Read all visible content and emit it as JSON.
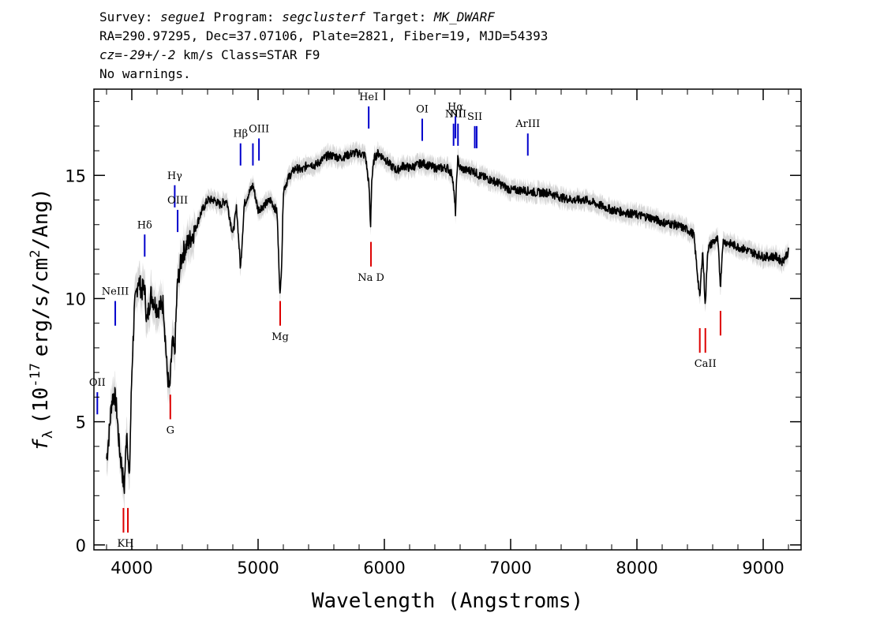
{
  "header": {
    "line1": {
      "survey_label": "Survey: ",
      "survey": "segue1",
      "program_label": " Program: ",
      "program": "segclusterf",
      "target_label": " Target: ",
      "target": "MK_DWARF"
    },
    "line2": "RA=290.97295, Dec=37.07106, Plate=2821, Fiber=19, MJD=54393",
    "line3": {
      "cz": "cz=-29+/-2",
      "rest": " km/s Class=STAR F9"
    },
    "line4": "No warnings."
  },
  "chart_data": {
    "type": "line",
    "xlabel": "Wavelength (Angstroms)",
    "ylabel": "f_λ (10^-17 erg/s/cm^2/Ang)",
    "ylabel_parts": {
      "symbol": "f",
      "sub": "λ",
      "pre": "(10",
      "exp1": "-17",
      "mid": "erg/s/cm",
      "exp2": "2",
      "post": "/Ang)"
    },
    "xlim": [
      3700,
      9300
    ],
    "ylim": [
      -0.2,
      18.5
    ],
    "x_ticks": [
      4000,
      5000,
      6000,
      7000,
      8000,
      9000
    ],
    "y_ticks": [
      0,
      5,
      10,
      15
    ],
    "colors": {
      "spectrum": "#000000",
      "error": "#bbbbbb",
      "emission": "#0000cc",
      "absorption": "#dd0000"
    },
    "spectrum": {
      "x": [
        3800,
        3820,
        3840,
        3860,
        3880,
        3900,
        3920,
        3940,
        3960,
        3980,
        4000,
        4020,
        4050,
        4080,
        4100,
        4120,
        4150,
        4200,
        4250,
        4280,
        4300,
        4320,
        4340,
        4360,
        4380,
        4400,
        4450,
        4500,
        4550,
        4600,
        4650,
        4700,
        4750,
        4800,
        4830,
        4861,
        4890,
        4920,
        4960,
        5000,
        5050,
        5100,
        5150,
        5175,
        5190,
        5200,
        5250,
        5300,
        5350,
        5400,
        5450,
        5500,
        5550,
        5600,
        5650,
        5700,
        5750,
        5800,
        5850,
        5880,
        5890,
        5900,
        5920,
        5950,
        6000,
        6050,
        6100,
        6150,
        6200,
        6250,
        6300,
        6350,
        6400,
        6450,
        6500,
        6540,
        6563,
        6580,
        6600,
        6650,
        6700,
        6750,
        6800,
        6900,
        7000,
        7100,
        7200,
        7300,
        7400,
        7500,
        7600,
        7700,
        7800,
        7900,
        8000,
        8100,
        8200,
        8300,
        8400,
        8450,
        8498,
        8520,
        8542,
        8560,
        8600,
        8640,
        8662,
        8680,
        8700,
        8800,
        8900,
        9000,
        9100,
        9150,
        9200
      ],
      "y": [
        3.5,
        4.5,
        5.8,
        6.2,
        5.5,
        4.0,
        3.2,
        2.2,
        4.8,
        2.5,
        7.0,
        9.5,
        10.8,
        10.3,
        10.5,
        9.0,
        10.2,
        9.6,
        9.8,
        7.0,
        6.2,
        8.2,
        7.8,
        10.5,
        11.2,
        11.8,
        12.3,
        12.8,
        13.5,
        14.0,
        14.0,
        13.8,
        14.0,
        12.6,
        13.7,
        11.2,
        13.8,
        14.2,
        14.6,
        13.6,
        13.8,
        14.0,
        13.5,
        10.0,
        12.0,
        14.4,
        15.0,
        15.3,
        15.2,
        15.5,
        15.4,
        15.6,
        15.8,
        15.8,
        15.7,
        15.8,
        15.9,
        15.9,
        15.8,
        14.5,
        12.8,
        14.8,
        15.7,
        15.9,
        15.7,
        15.4,
        15.2,
        15.4,
        15.3,
        15.4,
        15.5,
        15.4,
        15.3,
        15.3,
        15.3,
        15.0,
        13.5,
        15.7,
        15.3,
        15.2,
        15.2,
        15.0,
        14.9,
        14.7,
        14.4,
        14.4,
        14.3,
        14.3,
        14.1,
        14.0,
        14.0,
        13.8,
        13.6,
        13.5,
        13.4,
        13.3,
        13.1,
        13.0,
        12.8,
        12.6,
        10.0,
        12.0,
        9.7,
        12.0,
        12.3,
        12.4,
        10.5,
        12.3,
        12.3,
        12.1,
        11.9,
        11.7,
        11.7,
        11.5,
        11.9
      ]
    },
    "emission_lines": [
      {
        "label": "OII",
        "x": 3727,
        "y0": 5.3,
        "y1": 6.2
      },
      {
        "label": "NeIII",
        "x": 3869,
        "y0": 8.9,
        "y1": 9.9
      },
      {
        "label": "Hδ",
        "x": 4102,
        "y0": 11.7,
        "y1": 12.6
      },
      {
        "label": "Hγ",
        "x": 4340,
        "y0": 13.7,
        "y1": 14.6
      },
      {
        "label": "OIII",
        "x": 4363,
        "y0": 12.7,
        "y1": 13.6
      },
      {
        "label": "Hβ",
        "x": 4861,
        "y0": 15.4,
        "y1": 16.3
      },
      {
        "label": "",
        "x": 4959,
        "y0": 15.4,
        "y1": 16.3
      },
      {
        "label": "OIII",
        "x": 5007,
        "y0": 15.6,
        "y1": 16.5
      },
      {
        "label": "HeI",
        "x": 5876,
        "y0": 16.9,
        "y1": 17.8
      },
      {
        "label": "OI",
        "x": 6300,
        "y0": 16.4,
        "y1": 17.3
      },
      {
        "label": "NII",
        "x": 6548,
        "y0": 16.2,
        "y1": 17.1
      },
      {
        "label": "Hα",
        "x": 6563,
        "y0": 16.5,
        "y1": 17.4
      },
      {
        "label": "NII",
        "x": 6583,
        "y0": 16.2,
        "y1": 17.1
      },
      {
        "label": "SII",
        "x": 6716,
        "y0": 16.1,
        "y1": 17.0
      },
      {
        "label": "",
        "x": 6731,
        "y0": 16.1,
        "y1": 17.0
      },
      {
        "label": "ArIII",
        "x": 7136,
        "y0": 15.8,
        "y1": 16.7
      }
    ],
    "absorption_lines": [
      {
        "label": "K",
        "x": 3934,
        "y0": 0.5,
        "y1": 1.5
      },
      {
        "label": "H",
        "x": 3969,
        "y0": 0.5,
        "y1": 1.5
      },
      {
        "label": "G",
        "x": 4305,
        "y0": 5.1,
        "y1": 6.1
      },
      {
        "label": "Mg",
        "x": 5175,
        "y0": 8.9,
        "y1": 9.9
      },
      {
        "label": "Na D",
        "x": 5894,
        "y0": 11.3,
        "y1": 12.3
      },
      {
        "label": "",
        "x": 8498,
        "y0": 7.8,
        "y1": 8.8
      },
      {
        "label": "CaII",
        "x": 8542,
        "y0": 7.8,
        "y1": 8.8
      },
      {
        "label": "",
        "x": 8662,
        "y0": 8.5,
        "y1": 9.5
      }
    ],
    "line_label_texts": {
      "KH": "KH"
    }
  }
}
